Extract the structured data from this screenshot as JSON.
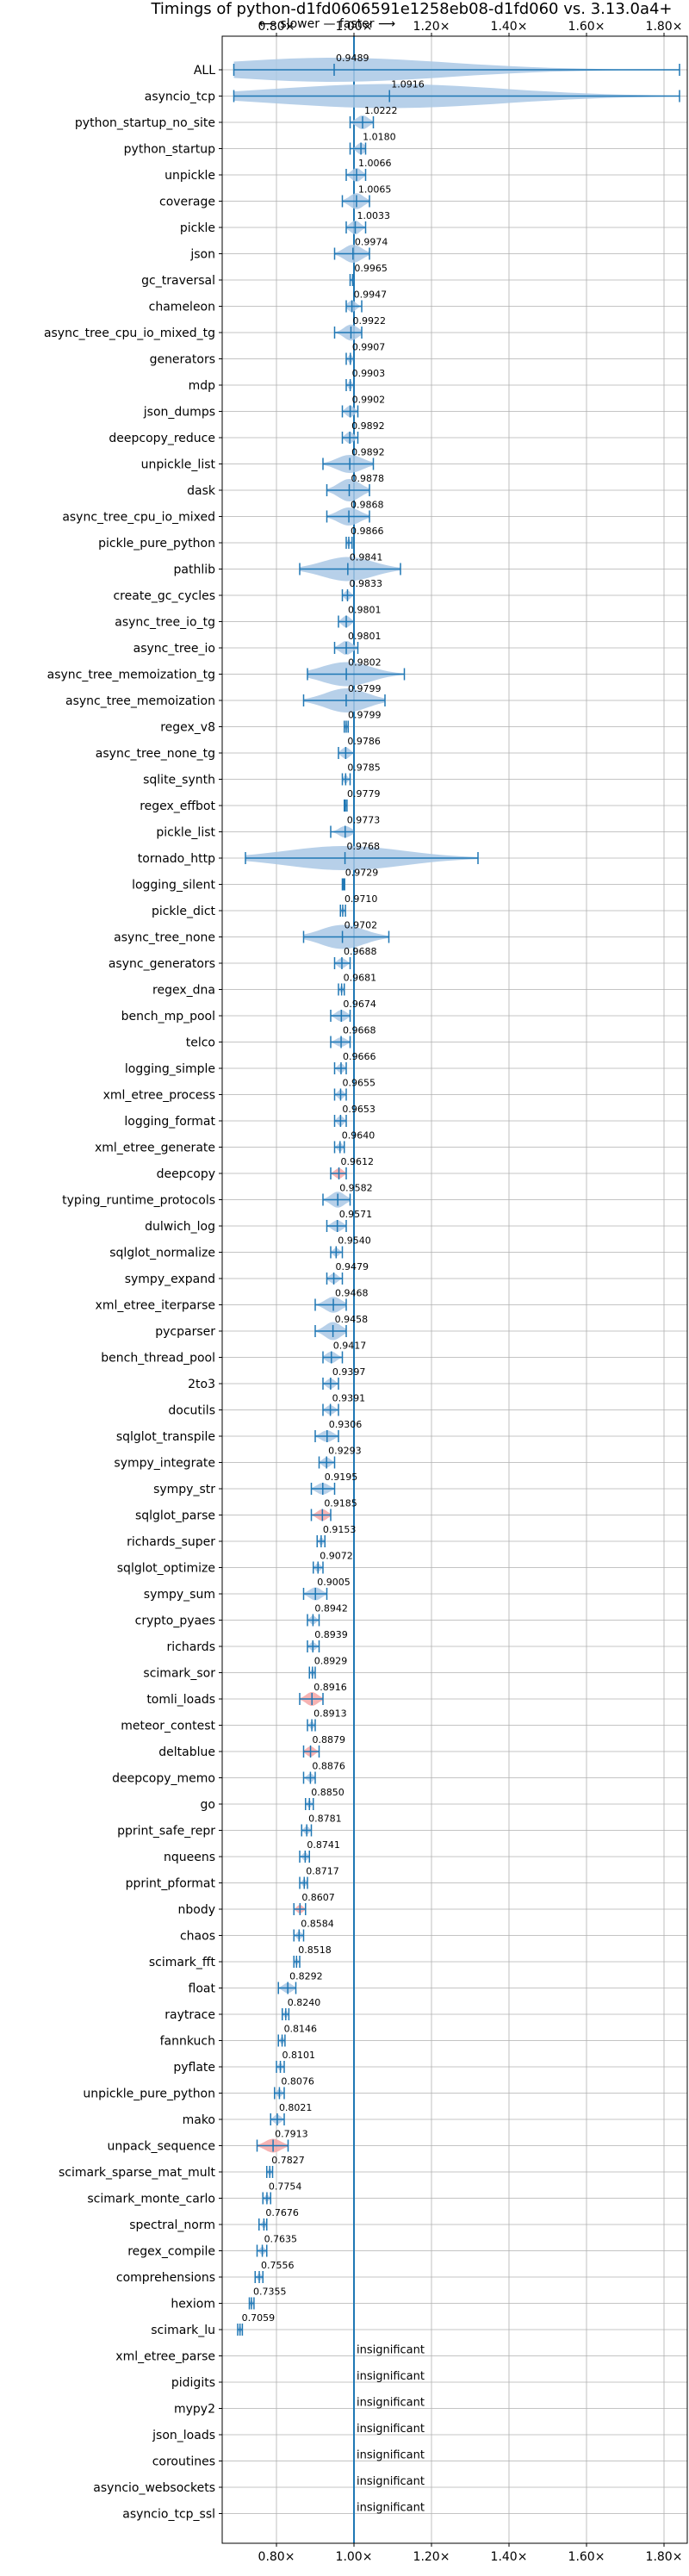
{
  "chart_data": {
    "type": "violin",
    "title": "Timings of python-d1fd0606591e1258eb08-d1fd060 vs. 3.13.0a4+",
    "subtitle": "⟵ slower — faster ⟶",
    "xlim": [
      0.66,
      1.86
    ],
    "xticks": [
      0.8,
      1.0,
      1.2,
      1.4,
      1.6,
      1.8
    ],
    "xtick_labels": [
      "0.80×",
      "1.00×",
      "1.20×",
      "1.40×",
      "1.60×",
      "1.80×"
    ],
    "grid": true,
    "colors": {
      "violin": "#aac8e5",
      "line": "#1f77b4",
      "highlight": "#f4a6a6"
    },
    "benchmarks": [
      {
        "name": "ALL",
        "value": 0.9489,
        "label": "0.9489",
        "min": 0.69,
        "max": 1.84,
        "spread": 0.05
      },
      {
        "name": "asyncio_tcp",
        "value": 1.0916,
        "label": "1.0916",
        "min": 0.69,
        "max": 1.84,
        "spread": 0.5
      },
      {
        "name": "python_startup_no_site",
        "value": 1.0222,
        "label": "1.0222",
        "min": 0.99,
        "max": 1.05,
        "spread": 0.02
      },
      {
        "name": "python_startup",
        "value": 1.018,
        "label": "1.0180",
        "min": 0.99,
        "max": 1.03,
        "spread": 0.015
      },
      {
        "name": "unpickle",
        "value": 1.0066,
        "label": "1.0066",
        "min": 0.98,
        "max": 1.03,
        "spread": 0.02
      },
      {
        "name": "coverage",
        "value": 1.0065,
        "label": "1.0065",
        "min": 0.97,
        "max": 1.04,
        "spread": 0.025
      },
      {
        "name": "pickle",
        "value": 1.0033,
        "label": "1.0033",
        "min": 0.98,
        "max": 1.03,
        "spread": 0.02
      },
      {
        "name": "json",
        "value": 0.9974,
        "label": "0.9974",
        "min": 0.95,
        "max": 1.04,
        "spread": 0.03
      },
      {
        "name": "gc_traversal",
        "value": 0.9965,
        "label": "0.9965",
        "min": 0.99,
        "max": 1.0,
        "spread": 0.005
      },
      {
        "name": "chameleon",
        "value": 0.9947,
        "label": "0.9947",
        "min": 0.98,
        "max": 1.02,
        "spread": 0.015
      },
      {
        "name": "async_tree_cpu_io_mixed_tg",
        "value": 0.9922,
        "label": "0.9922",
        "min": 0.95,
        "max": 1.02,
        "spread": 0.025
      },
      {
        "name": "generators",
        "value": 0.9907,
        "label": "0.9907",
        "min": 0.98,
        "max": 1.0,
        "spread": 0.008
      },
      {
        "name": "mdp",
        "value": 0.9903,
        "label": "0.9903",
        "min": 0.98,
        "max": 1.0,
        "spread": 0.008
      },
      {
        "name": "json_dumps",
        "value": 0.9902,
        "label": "0.9902",
        "min": 0.97,
        "max": 1.01,
        "spread": 0.015
      },
      {
        "name": "deepcopy_reduce",
        "value": 0.9892,
        "label": "0.9892",
        "min": 0.97,
        "max": 1.01,
        "spread": 0.015
      },
      {
        "name": "unpickle_list",
        "value": 0.9892,
        "label": "0.9892",
        "min": 0.92,
        "max": 1.05,
        "spread": 0.03
      },
      {
        "name": "dask",
        "value": 0.9878,
        "label": "0.9878",
        "min": 0.93,
        "max": 1.04,
        "spread": 0.04
      },
      {
        "name": "async_tree_cpu_io_mixed",
        "value": 0.9868,
        "label": "0.9868",
        "min": 0.93,
        "max": 1.04,
        "spread": 0.03
      },
      {
        "name": "pickle_pure_python",
        "value": 0.9866,
        "label": "0.9866",
        "min": 0.98,
        "max": 0.995,
        "spread": 0.006
      },
      {
        "name": "pathlib",
        "value": 0.9841,
        "label": "0.9841",
        "min": 0.86,
        "max": 1.12,
        "spread": 0.08
      },
      {
        "name": "create_gc_cycles",
        "value": 0.9833,
        "label": "0.9833",
        "min": 0.97,
        "max": 1.0,
        "spread": 0.01
      },
      {
        "name": "async_tree_io_tg",
        "value": 0.9801,
        "label": "0.9801",
        "min": 0.96,
        "max": 1.0,
        "spread": 0.015
      },
      {
        "name": "async_tree_io",
        "value": 0.9801,
        "label": "0.9801",
        "min": 0.95,
        "max": 1.01,
        "spread": 0.02
      },
      {
        "name": "async_tree_memoization_tg",
        "value": 0.9802,
        "label": "0.9802",
        "min": 0.88,
        "max": 1.13,
        "spread": 0.06
      },
      {
        "name": "async_tree_memoization",
        "value": 0.9799,
        "label": "0.9799",
        "min": 0.87,
        "max": 1.08,
        "spread": 0.07
      },
      {
        "name": "regex_v8",
        "value": 0.9799,
        "label": "0.9799",
        "min": 0.975,
        "max": 0.985,
        "spread": 0.004
      },
      {
        "name": "async_tree_none_tg",
        "value": 0.9786,
        "label": "0.9786",
        "min": 0.96,
        "max": 1.0,
        "spread": 0.015
      },
      {
        "name": "sqlite_synth",
        "value": 0.9785,
        "label": "0.9785",
        "min": 0.97,
        "max": 0.99,
        "spread": 0.008
      },
      {
        "name": "regex_effbot",
        "value": 0.9779,
        "label": "0.9779",
        "min": 0.975,
        "max": 0.982,
        "spread": 0.003
      },
      {
        "name": "pickle_list",
        "value": 0.9773,
        "label": "0.9773",
        "min": 0.94,
        "max": 1.0,
        "spread": 0.015
      },
      {
        "name": "tornado_http",
        "value": 0.9768,
        "label": "0.9768",
        "min": 0.72,
        "max": 1.32,
        "spread": 0.2
      },
      {
        "name": "logging_silent",
        "value": 0.9729,
        "label": "0.9729",
        "min": 0.97,
        "max": 0.976,
        "spread": 0.003
      },
      {
        "name": "pickle_dict",
        "value": 0.971,
        "label": "0.9710",
        "min": 0.965,
        "max": 0.978,
        "spread": 0.004
      },
      {
        "name": "async_tree_none",
        "value": 0.9702,
        "label": "0.9702",
        "min": 0.87,
        "max": 1.09,
        "spread": 0.07
      },
      {
        "name": "async_generators",
        "value": 0.9688,
        "label": "0.9688",
        "min": 0.95,
        "max": 0.99,
        "spread": 0.012
      },
      {
        "name": "regex_dna",
        "value": 0.9681,
        "label": "0.9681",
        "min": 0.96,
        "max": 0.975,
        "spread": 0.005
      },
      {
        "name": "bench_mp_pool",
        "value": 0.9674,
        "label": "0.9674",
        "min": 0.94,
        "max": 0.99,
        "spread": 0.015
      },
      {
        "name": "telco",
        "value": 0.9668,
        "label": "0.9668",
        "min": 0.94,
        "max": 0.99,
        "spread": 0.01
      },
      {
        "name": "logging_simple",
        "value": 0.9666,
        "label": "0.9666",
        "min": 0.95,
        "max": 0.98,
        "spread": 0.01
      },
      {
        "name": "xml_etree_process",
        "value": 0.9655,
        "label": "0.9655",
        "min": 0.95,
        "max": 0.98,
        "spread": 0.01
      },
      {
        "name": "logging_format",
        "value": 0.9653,
        "label": "0.9653",
        "min": 0.95,
        "max": 0.98,
        "spread": 0.012
      },
      {
        "name": "xml_etree_generate",
        "value": 0.964,
        "label": "0.9640",
        "min": 0.95,
        "max": 0.975,
        "spread": 0.008
      },
      {
        "name": "deepcopy",
        "value": 0.9612,
        "label": "0.9612",
        "min": 0.94,
        "max": 0.98,
        "spread": 0.012,
        "highlight": true
      },
      {
        "name": "typing_runtime_protocols",
        "value": 0.9582,
        "label": "0.9582",
        "min": 0.92,
        "max": 0.99,
        "spread": 0.025
      },
      {
        "name": "dulwich_log",
        "value": 0.9571,
        "label": "0.9571",
        "min": 0.93,
        "max": 0.98,
        "spread": 0.015
      },
      {
        "name": "sqlglot_normalize",
        "value": 0.954,
        "label": "0.9540",
        "min": 0.94,
        "max": 0.97,
        "spread": 0.008
      },
      {
        "name": "sympy_expand",
        "value": 0.9479,
        "label": "0.9479",
        "min": 0.93,
        "max": 0.97,
        "spread": 0.012
      },
      {
        "name": "xml_etree_iterparse",
        "value": 0.9468,
        "label": "0.9468",
        "min": 0.9,
        "max": 0.98,
        "spread": 0.025
      },
      {
        "name": "pycparser",
        "value": 0.9458,
        "label": "0.9458",
        "min": 0.9,
        "max": 0.98,
        "spread": 0.03
      },
      {
        "name": "bench_thread_pool",
        "value": 0.9417,
        "label": "0.9417",
        "min": 0.92,
        "max": 0.97,
        "spread": 0.015
      },
      {
        "name": "2to3",
        "value": 0.9397,
        "label": "0.9397",
        "min": 0.92,
        "max": 0.96,
        "spread": 0.012
      },
      {
        "name": "docutils",
        "value": 0.9391,
        "label": "0.9391",
        "min": 0.92,
        "max": 0.96,
        "spread": 0.01
      },
      {
        "name": "sqlglot_transpile",
        "value": 0.9306,
        "label": "0.9306",
        "min": 0.9,
        "max": 0.96,
        "spread": 0.015
      },
      {
        "name": "sympy_integrate",
        "value": 0.9293,
        "label": "0.9293",
        "min": 0.91,
        "max": 0.95,
        "spread": 0.012
      },
      {
        "name": "sympy_str",
        "value": 0.9195,
        "label": "0.9195",
        "min": 0.89,
        "max": 0.95,
        "spread": 0.015
      },
      {
        "name": "sqlglot_parse",
        "value": 0.9185,
        "label": "0.9185",
        "min": 0.89,
        "max": 0.94,
        "spread": 0.015,
        "highlight": true
      },
      {
        "name": "richards_super",
        "value": 0.9153,
        "label": "0.9153",
        "min": 0.905,
        "max": 0.925,
        "spread": 0.006
      },
      {
        "name": "sqlglot_optimize",
        "value": 0.9072,
        "label": "0.9072",
        "min": 0.895,
        "max": 0.92,
        "spread": 0.008
      },
      {
        "name": "sympy_sum",
        "value": 0.9005,
        "label": "0.9005",
        "min": 0.87,
        "max": 0.93,
        "spread": 0.018
      },
      {
        "name": "crypto_pyaes",
        "value": 0.8942,
        "label": "0.8942",
        "min": 0.88,
        "max": 0.91,
        "spread": 0.008
      },
      {
        "name": "richards",
        "value": 0.8939,
        "label": "0.8939",
        "min": 0.88,
        "max": 0.91,
        "spread": 0.008
      },
      {
        "name": "scimark_sor",
        "value": 0.8929,
        "label": "0.8929",
        "min": 0.885,
        "max": 0.9,
        "spread": 0.005
      },
      {
        "name": "tomli_loads",
        "value": 0.8916,
        "label": "0.8916",
        "min": 0.86,
        "max": 0.92,
        "spread": 0.02,
        "highlight": true
      },
      {
        "name": "meteor_contest",
        "value": 0.8913,
        "label": "0.8913",
        "min": 0.88,
        "max": 0.9,
        "spread": 0.006
      },
      {
        "name": "deltablue",
        "value": 0.8879,
        "label": "0.8879",
        "min": 0.87,
        "max": 0.91,
        "spread": 0.012,
        "highlight": true
      },
      {
        "name": "deepcopy_memo",
        "value": 0.8876,
        "label": "0.8876",
        "min": 0.87,
        "max": 0.9,
        "spread": 0.008
      },
      {
        "name": "go",
        "value": 0.885,
        "label": "0.8850",
        "min": 0.875,
        "max": 0.895,
        "spread": 0.005
      },
      {
        "name": "pprint_safe_repr",
        "value": 0.8781,
        "label": "0.8781",
        "min": 0.865,
        "max": 0.89,
        "spread": 0.007
      },
      {
        "name": "nqueens",
        "value": 0.8741,
        "label": "0.8741",
        "min": 0.86,
        "max": 0.885,
        "spread": 0.007
      },
      {
        "name": "pprint_pformat",
        "value": 0.8717,
        "label": "0.8717",
        "min": 0.86,
        "max": 0.88,
        "spread": 0.006
      },
      {
        "name": "nbody",
        "value": 0.8607,
        "label": "0.8607",
        "min": 0.845,
        "max": 0.875,
        "spread": 0.008,
        "highlight": true
      },
      {
        "name": "chaos",
        "value": 0.8584,
        "label": "0.8584",
        "min": 0.845,
        "max": 0.87,
        "spread": 0.007
      },
      {
        "name": "scimark_fft",
        "value": 0.8518,
        "label": "0.8518",
        "min": 0.845,
        "max": 0.86,
        "spread": 0.004
      },
      {
        "name": "float",
        "value": 0.8292,
        "label": "0.8292",
        "min": 0.805,
        "max": 0.85,
        "spread": 0.012
      },
      {
        "name": "raytrace",
        "value": 0.824,
        "label": "0.8240",
        "min": 0.815,
        "max": 0.832,
        "spread": 0.005
      },
      {
        "name": "fannkuch",
        "value": 0.8146,
        "label": "0.8146",
        "min": 0.805,
        "max": 0.822,
        "spread": 0.005
      },
      {
        "name": "pyflate",
        "value": 0.8101,
        "label": "0.8101",
        "min": 0.8,
        "max": 0.82,
        "spread": 0.006
      },
      {
        "name": "unpickle_pure_python",
        "value": 0.8076,
        "label": "0.8076",
        "min": 0.795,
        "max": 0.82,
        "spread": 0.006
      },
      {
        "name": "mako",
        "value": 0.8021,
        "label": "0.8021",
        "min": 0.785,
        "max": 0.82,
        "spread": 0.01
      },
      {
        "name": "unpack_sequence",
        "value": 0.7913,
        "label": "0.7913",
        "min": 0.75,
        "max": 0.83,
        "spread": 0.02,
        "highlight": true
      },
      {
        "name": "scimark_sparse_mat_mult",
        "value": 0.7827,
        "label": "0.7827",
        "min": 0.775,
        "max": 0.79,
        "spread": 0.004
      },
      {
        "name": "scimark_monte_carlo",
        "value": 0.7754,
        "label": "0.7754",
        "min": 0.765,
        "max": 0.785,
        "spread": 0.005
      },
      {
        "name": "spectral_norm",
        "value": 0.7676,
        "label": "0.7676",
        "min": 0.755,
        "max": 0.775,
        "spread": 0.005
      },
      {
        "name": "regex_compile",
        "value": 0.7635,
        "label": "0.7635",
        "min": 0.75,
        "max": 0.775,
        "spread": 0.006
      },
      {
        "name": "comprehensions",
        "value": 0.7556,
        "label": "0.7556",
        "min": 0.745,
        "max": 0.765,
        "spread": 0.005
      },
      {
        "name": "hexiom",
        "value": 0.7355,
        "label": "0.7355",
        "min": 0.73,
        "max": 0.742,
        "spread": 0.004
      },
      {
        "name": "scimark_lu",
        "value": 0.7059,
        "label": "0.7059",
        "min": 0.7,
        "max": 0.712,
        "spread": 0.004
      },
      {
        "name": "xml_etree_parse",
        "insignificant": true,
        "label": "insignificant"
      },
      {
        "name": "pidigits",
        "insignificant": true,
        "label": "insignificant"
      },
      {
        "name": "mypy2",
        "insignificant": true,
        "label": "insignificant"
      },
      {
        "name": "json_loads",
        "insignificant": true,
        "label": "insignificant"
      },
      {
        "name": "coroutines",
        "insignificant": true,
        "label": "insignificant"
      },
      {
        "name": "asyncio_websockets",
        "insignificant": true,
        "label": "insignificant"
      },
      {
        "name": "asyncio_tcp_ssl",
        "insignificant": true,
        "label": "insignificant"
      }
    ]
  }
}
